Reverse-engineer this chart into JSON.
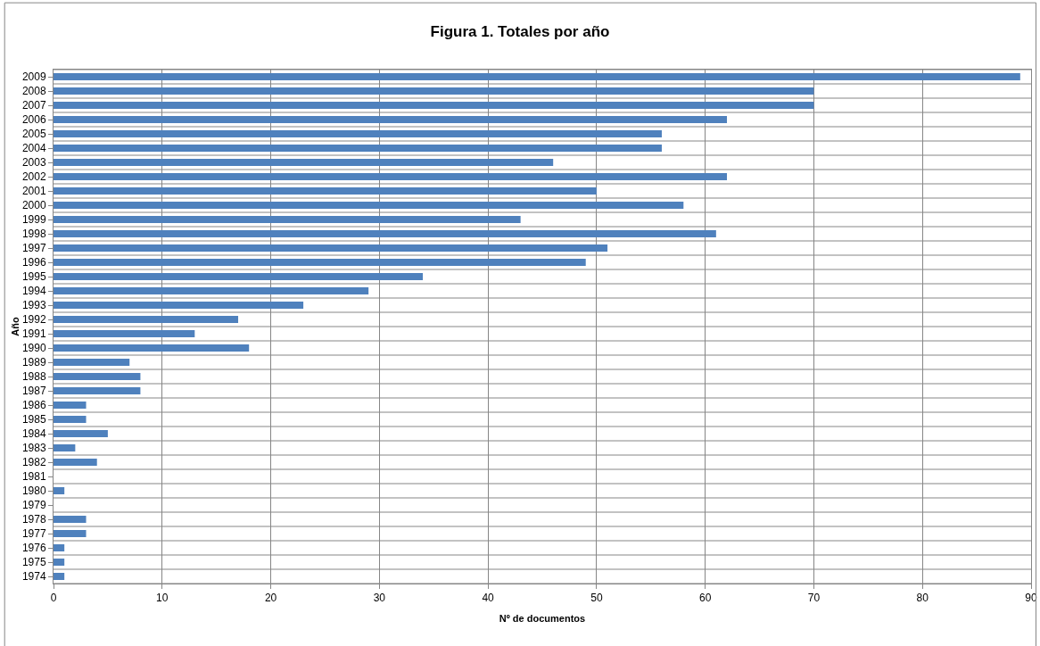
{
  "chart_data": {
    "type": "bar",
    "orientation": "horizontal",
    "title": "Figura 1. Totales por año",
    "xlabel": "Nº de documentos",
    "ylabel": "Año",
    "categories": [
      "2009",
      "2008",
      "2007",
      "2006",
      "2005",
      "2004",
      "2003",
      "2002",
      "2001",
      "2000",
      "1999",
      "1998",
      "1997",
      "1996",
      "1995",
      "1994",
      "1993",
      "1992",
      "1991",
      "1990",
      "1989",
      "1988",
      "1987",
      "1986",
      "1985",
      "1984",
      "1983",
      "1982",
      "1981",
      "1980",
      "1979",
      "1978",
      "1977",
      "1976",
      "1975",
      "1974"
    ],
    "values": [
      89,
      70,
      70,
      62,
      56,
      56,
      46,
      62,
      50,
      58,
      43,
      61,
      51,
      49,
      34,
      29,
      23,
      17,
      13,
      18,
      7,
      8,
      8,
      3,
      3,
      5,
      2,
      4,
      0,
      1,
      0,
      3,
      3,
      1,
      1,
      1
    ],
    "color": "#4f81bd",
    "xlim": [
      0,
      90
    ],
    "xticks": [
      0,
      10,
      20,
      30,
      40,
      50,
      60,
      70,
      80,
      90
    ],
    "grid": true
  }
}
